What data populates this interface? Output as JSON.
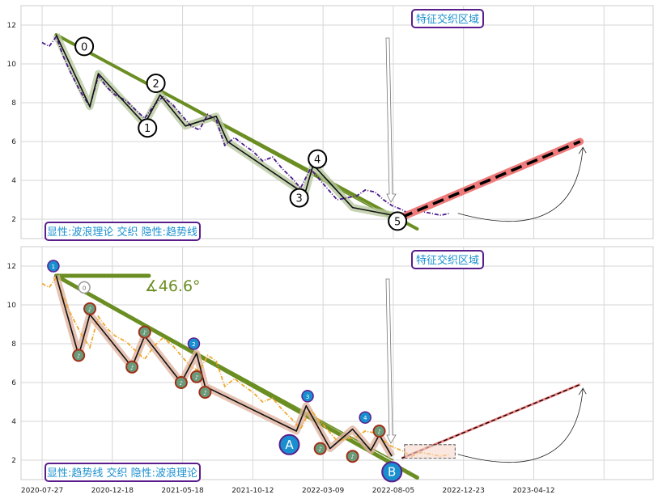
{
  "chart_data": [
    {
      "type": "line",
      "panel": "top",
      "x_tick_labels": [],
      "y_ticks": [
        2,
        4,
        6,
        8,
        10,
        12
      ],
      "ylim": [
        1,
        13
      ],
      "grid": true,
      "series": [
        {
          "color": "#4b1a8c",
          "style": "dash-dot",
          "values": [
            [
              0,
              11.1
            ],
            [
              0.5,
              10.9
            ],
            [
              1,
              11.4
            ],
            [
              1.5,
              10.4
            ],
            [
              2,
              9.6
            ],
            [
              2.7,
              8.6
            ],
            [
              3.4,
              7.8
            ],
            [
              4,
              9.4
            ],
            [
              4.6,
              8.8
            ],
            [
              5.2,
              8.4
            ],
            [
              6,
              8.1
            ],
            [
              6.7,
              7.6
            ],
            [
              7.3,
              7.2
            ],
            [
              8,
              7.9
            ],
            [
              8.6,
              8.3
            ],
            [
              9.3,
              7.9
            ],
            [
              10,
              7.3
            ],
            [
              10.6,
              6.8
            ],
            [
              11.2,
              6.6
            ],
            [
              11.8,
              7.4
            ],
            [
              12.4,
              7.1
            ],
            [
              13,
              5.8
            ],
            [
              13.7,
              6.2
            ],
            [
              14.4,
              5.8
            ],
            [
              15,
              5.5
            ],
            [
              15.7,
              5.0
            ],
            [
              16.4,
              5.2
            ],
            [
              17.1,
              4.6
            ],
            [
              17.8,
              4.1
            ],
            [
              18.4,
              3.6
            ],
            [
              19.1,
              4.6
            ],
            [
              19.8,
              4.0
            ],
            [
              20.4,
              3.5
            ],
            [
              21,
              3.0
            ],
            [
              21.7,
              3.1
            ],
            [
              22.4,
              3.2
            ],
            [
              23,
              3.5
            ],
            [
              23.7,
              3.4
            ],
            [
              24.3,
              3.0
            ],
            [
              24.9,
              2.7
            ],
            [
              25.6,
              2.5
            ],
            [
              26.3,
              2.2
            ],
            [
              27,
              2.4
            ],
            [
              27.7,
              2.3
            ],
            [
              28.4,
              2.2
            ],
            [
              29,
              2.3
            ]
          ]
        }
      ],
      "wave_points": [
        [
          1,
          11.5
        ],
        [
          3.4,
          7.8
        ],
        [
          4,
          9.5
        ],
        [
          7.3,
          6.9
        ],
        [
          8.4,
          8.4
        ],
        [
          10.2,
          6.8
        ],
        [
          12.4,
          7.3
        ],
        [
          13.2,
          6.0
        ],
        [
          18.7,
          3.3
        ],
        [
          19.3,
          4.8
        ],
        [
          22.1,
          2.6
        ],
        [
          25.7,
          2.1
        ]
      ],
      "wave_labels": [
        {
          "t": "0",
          "x": 3.0,
          "y": 10.9
        },
        {
          "t": "1",
          "x": 7.5,
          "y": 6.7
        },
        {
          "t": "2",
          "x": 8.1,
          "y": 9.0
        },
        {
          "t": "3",
          "x": 18.3,
          "y": 3.1
        },
        {
          "t": "4",
          "x": 19.6,
          "y": 5.1
        },
        {
          "t": "5",
          "x": 25.3,
          "y": 1.9
        }
      ],
      "trend_line": [
        [
          1,
          11.5
        ],
        [
          26.7,
          1.5
        ]
      ],
      "channel_line": [
        [
          1,
          11.5
        ],
        [
          25,
          2.0
        ]
      ],
      "projection": [
        [
          25.6,
          2.1
        ],
        [
          38.3,
          6.0
        ]
      ],
      "arc_end": [
        38.5,
        5.7
      ],
      "callout": "特征交织区域",
      "caption": "显性:波浪理论 交织 隐性:趋势线"
    },
    {
      "type": "line",
      "panel": "bottom",
      "x_tick_labels": [
        "2020-07-27",
        "2020-12-18",
        "2021-05-18",
        "2021-10-12",
        "2022-03-09",
        "2022-08-05",
        "2022-12-23",
        "2023-04-12"
      ],
      "y_ticks": [
        2,
        4,
        6,
        8,
        10,
        12
      ],
      "ylim": [
        1,
        13
      ],
      "grid": true,
      "angle_label": "∡46.6°",
      "series": [
        {
          "color": "#f0a830",
          "style": "dash-dot",
          "values": [
            [
              0,
              11.1
            ],
            [
              0.5,
              10.9
            ],
            [
              1,
              11.4
            ],
            [
              1.5,
              10.4
            ],
            [
              2,
              9.6
            ],
            [
              2.7,
              8.6
            ],
            [
              3.4,
              7.8
            ],
            [
              4,
              9.4
            ],
            [
              4.6,
              8.8
            ],
            [
              5.2,
              8.4
            ],
            [
              6,
              8.1
            ],
            [
              6.7,
              7.6
            ],
            [
              7.3,
              7.2
            ],
            [
              8,
              7.9
            ],
            [
              8.6,
              8.3
            ],
            [
              9.3,
              7.9
            ],
            [
              10,
              7.3
            ],
            [
              10.6,
              6.8
            ],
            [
              11.2,
              6.6
            ],
            [
              11.8,
              7.4
            ],
            [
              12.4,
              7.1
            ],
            [
              13,
              5.8
            ],
            [
              13.7,
              6.2
            ],
            [
              14.4,
              5.8
            ],
            [
              15,
              5.5
            ],
            [
              15.7,
              5.0
            ],
            [
              16.4,
              5.2
            ],
            [
              17.1,
              4.6
            ],
            [
              17.8,
              4.1
            ],
            [
              18.4,
              3.6
            ],
            [
              19.1,
              4.6
            ],
            [
              19.8,
              4.0
            ],
            [
              20.4,
              3.5
            ],
            [
              21,
              3.0
            ],
            [
              21.7,
              3.1
            ],
            [
              22.4,
              3.2
            ],
            [
              23,
              3.5
            ],
            [
              23.7,
              3.4
            ],
            [
              24.3,
              3.0
            ],
            [
              24.9,
              2.7
            ],
            [
              25.6,
              2.5
            ],
            [
              26.3,
              2.2
            ],
            [
              27,
              2.4
            ],
            [
              27.7,
              2.3
            ],
            [
              28.4,
              2.2
            ],
            [
              29,
              2.3
            ]
          ]
        }
      ],
      "wave_points": [
        [
          1,
          11.5
        ],
        [
          2.6,
          7.4
        ],
        [
          3.4,
          9.5
        ],
        [
          6.4,
          6.8
        ],
        [
          7.3,
          8.4
        ],
        [
          9.9,
          6.0
        ],
        [
          11.0,
          7.5
        ],
        [
          11.6,
          5.8
        ],
        [
          18.1,
          3.5
        ],
        [
          18.8,
          4.8
        ],
        [
          20.5,
          2.6
        ],
        [
          22.1,
          3.6
        ],
        [
          23.4,
          2.5
        ],
        [
          24.0,
          3.3
        ],
        [
          24.9,
          2.2
        ]
      ],
      "main_labels": [
        {
          "t": "1",
          "x": 0.8,
          "y": 12.0,
          "k": "blue"
        },
        {
          "t": "0",
          "x": 3.0,
          "y": 10.9,
          "k": "hollow"
        },
        {
          "t": "2",
          "x": 10.8,
          "y": 8.0,
          "k": "blue"
        },
        {
          "t": "3",
          "x": 18.9,
          "y": 5.3,
          "k": "blue"
        },
        {
          "t": "4",
          "x": 23.0,
          "y": 4.2,
          "k": "blue"
        },
        {
          "t": "A",
          "x": 17.6,
          "y": 2.8,
          "k": "bigblue"
        },
        {
          "t": "B",
          "x": 24.9,
          "y": 1.4,
          "k": "bigblue"
        }
      ],
      "sub_labels": [
        [
          2.6,
          7.4
        ],
        [
          3.4,
          9.8
        ],
        [
          6.4,
          6.8
        ],
        [
          7.3,
          8.6
        ],
        [
          9.9,
          6.0
        ],
        [
          11.6,
          5.5
        ],
        [
          11.0,
          6.3
        ],
        [
          19.8,
          2.6
        ],
        [
          22.1,
          2.2
        ],
        [
          24.0,
          3.5
        ]
      ],
      "trend_line": [
        [
          1,
          11.5
        ],
        [
          26.7,
          1.1
        ]
      ],
      "flat_line": [
        [
          1,
          11.5
        ],
        [
          7.6,
          11.5
        ]
      ],
      "channel_line": [
        [
          1,
          11.5
        ],
        [
          25,
          2.0
        ]
      ],
      "projection": [
        [
          25.6,
          2.1
        ],
        [
          38.3,
          5.9
        ]
      ],
      "arc_end": [
        38.5,
        5.7
      ],
      "callout": "特征交织区域",
      "caption": "显性:趋势线 交织 隐性:波浪理论"
    }
  ]
}
